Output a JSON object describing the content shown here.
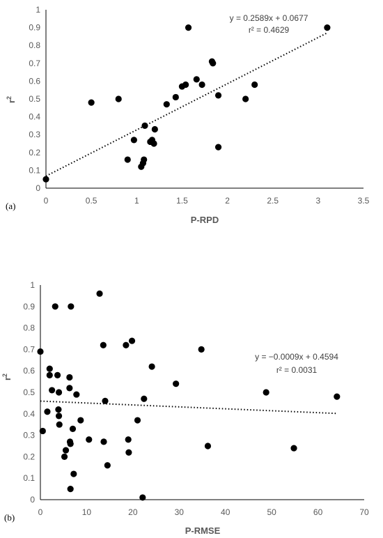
{
  "chart_data": [
    {
      "type": "scatter",
      "panel_label": "(a)",
      "xlabel": "P-RPD",
      "ylabel": "r",
      "ylabel_sup": "2",
      "xlim": [
        0,
        3.5
      ],
      "ylim": [
        0,
        1
      ],
      "x_ticks": [
        "0",
        "0.5",
        "1",
        "1.5",
        "2",
        "2.5",
        "3",
        "3.5"
      ],
      "y_ticks": [
        "0",
        "0.1",
        "0.2",
        "0.3",
        "0.4",
        "0.5",
        "0.6",
        "0.7",
        "0.8",
        "0.9",
        "1"
      ],
      "equation": "y = 0.2589x + 0.0677",
      "r2_label": "r² = 0.4629",
      "trendline": {
        "slope": 0.2589,
        "intercept": 0.0677,
        "x_range": [
          0,
          3.1
        ]
      },
      "points": [
        [
          0,
          0.05
        ],
        [
          0.5,
          0.48
        ],
        [
          0.8,
          0.5
        ],
        [
          0.9,
          0.16
        ],
        [
          0.97,
          0.27
        ],
        [
          1.05,
          0.12
        ],
        [
          1.07,
          0.14
        ],
        [
          1.08,
          0.16
        ],
        [
          1.09,
          0.35
        ],
        [
          1.15,
          0.26
        ],
        [
          1.17,
          0.27
        ],
        [
          1.19,
          0.25
        ],
        [
          1.2,
          0.33
        ],
        [
          1.33,
          0.47
        ],
        [
          1.43,
          0.51
        ],
        [
          1.5,
          0.57
        ],
        [
          1.54,
          0.58
        ],
        [
          1.57,
          0.9
        ],
        [
          1.66,
          0.61
        ],
        [
          1.72,
          0.58
        ],
        [
          1.83,
          0.71
        ],
        [
          1.84,
          0.7
        ],
        [
          1.9,
          0.52
        ],
        [
          1.9,
          0.23
        ],
        [
          2.2,
          0.5
        ],
        [
          2.3,
          0.58
        ],
        [
          3.1,
          0.9
        ]
      ]
    },
    {
      "type": "scatter",
      "panel_label": "(b)",
      "xlabel": "P-RMSE",
      "ylabel": "r",
      "ylabel_sup": "2",
      "xlim": [
        0,
        70
      ],
      "ylim": [
        0,
        1
      ],
      "x_ticks": [
        "0",
        "10",
        "20",
        "30",
        "40",
        "50",
        "60",
        "70"
      ],
      "y_ticks": [
        "0",
        "0.1",
        "0.2",
        "0.3",
        "0.4",
        "0.5",
        "0.6",
        "0.7",
        "0.8",
        "0.9",
        "1"
      ],
      "equation": "y = −0.0009x + 0.4594",
      "r2_label": "r² = 0.0031",
      "trendline": {
        "slope": -0.0009,
        "intercept": 0.4594,
        "x_range": [
          0,
          64
        ]
      },
      "points": [
        [
          0,
          0.69
        ],
        [
          0.5,
          0.32
        ],
        [
          1.5,
          0.41
        ],
        [
          2,
          0.61
        ],
        [
          2,
          0.58
        ],
        [
          2.5,
          0.51
        ],
        [
          3.2,
          0.9
        ],
        [
          3.7,
          0.58
        ],
        [
          3.9,
          0.42
        ],
        [
          4,
          0.39
        ],
        [
          4,
          0.5
        ],
        [
          4.1,
          0.35
        ],
        [
          5.2,
          0.2
        ],
        [
          5.5,
          0.23
        ],
        [
          6.3,
          0.57
        ],
        [
          6.3,
          0.52
        ],
        [
          6.4,
          0.27
        ],
        [
          6.5,
          0.26
        ],
        [
          6.5,
          0.05
        ],
        [
          6.6,
          0.9
        ],
        [
          7,
          0.33
        ],
        [
          7.2,
          0.12
        ],
        [
          7.8,
          0.49
        ],
        [
          8.7,
          0.37
        ],
        [
          10.5,
          0.28
        ],
        [
          12.8,
          0.96
        ],
        [
          13.6,
          0.72
        ],
        [
          13.7,
          0.27
        ],
        [
          14,
          0.46
        ],
        [
          14.5,
          0.16
        ],
        [
          18.5,
          0.72
        ],
        [
          19,
          0.28
        ],
        [
          19.1,
          0.22
        ],
        [
          19.8,
          0.74
        ],
        [
          21,
          0.37
        ],
        [
          22.1,
          0.01
        ],
        [
          22.4,
          0.47
        ],
        [
          24.1,
          0.62
        ],
        [
          29.3,
          0.54
        ],
        [
          34.8,
          0.7
        ],
        [
          36.2,
          0.25
        ],
        [
          48.8,
          0.5
        ],
        [
          54.8,
          0.24
        ],
        [
          64.1,
          0.48
        ]
      ]
    }
  ]
}
